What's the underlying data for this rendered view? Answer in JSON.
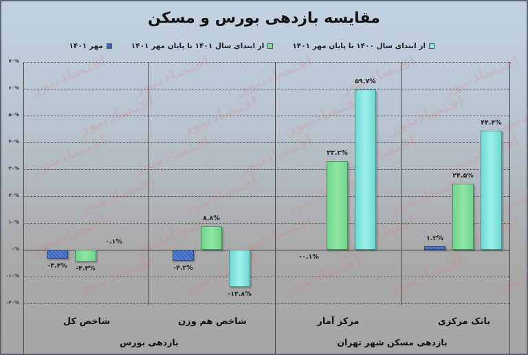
{
  "chart_data": {
    "type": "bar",
    "title": "مقایسه بازدهی بورس و مسکن",
    "legend_position": "top",
    "grid": true,
    "ylim": [
      -20,
      70
    ],
    "yticks": [
      "-۲۰%",
      "-۱۰%",
      "۰%",
      "۱۰%",
      "۲۰%",
      "۳۰%",
      "۴۰%",
      "۵۰%",
      "۶۰%",
      "۷۰%"
    ],
    "ytick_values": [
      -20,
      -10,
      0,
      10,
      20,
      30,
      40,
      50,
      60,
      70
    ],
    "categories": [
      "شاخص کل",
      "شاخص هم وزن",
      "مرکز آمار",
      "بانک مرکزی"
    ],
    "category_groups": [
      {
        "label": "بازدهی بورس",
        "categories": [
          "شاخص کل",
          "شاخص هم وزن"
        ]
      },
      {
        "label": "بازدهی مسکن شهر تهران",
        "categories": [
          "مرکز آمار",
          "بانک مرکزی"
        ]
      }
    ],
    "series": [
      {
        "name": "مهر ۱۴۰۱",
        "color": "#3a62b8",
        "values": [
          -3.4,
          -4.2,
          -0.1,
          1.2
        ],
        "labels": [
          "-۳.۴%",
          "-۴.۲%",
          "-۰.۱%",
          "۱.۲%"
        ]
      },
      {
        "name": "از ابتدای سال ۱۴۰۱ تا پایان مهر ۱۴۰۱",
        "color": "#7fdd98",
        "values": [
          -4.3,
          8.8,
          33.2,
          24.5
        ],
        "labels": [
          "-۴.۳%",
          "۸.۸%",
          "۳۳.۲%",
          "۲۴.۵%"
        ]
      },
      {
        "name": "از ابتدای سال ۱۴۰۰ تا پایان مهر ۱۴۰۱",
        "color": "#86e6e0",
        "values": [
          0.1,
          -13.8,
          59.7,
          44.4
        ],
        "labels": [
          "۰.۱%",
          "-۱۳.۸%",
          "۵۹.۷%",
          "۴۴.۴%"
        ]
      }
    ]
  },
  "title": "مقایسه بازدهی بورس و مسکن",
  "legend": [
    {
      "label": "از ابتدای سال ۱۴۰۰ تا پایان مهر ۱۴۰۱",
      "color": "#86e6e0"
    },
    {
      "label": "از ابتدای سال ۱۴۰۱ تا پایان مهر ۱۴۰۱",
      "color": "#7fdd98"
    },
    {
      "label": "مهر ۱۴۰۱",
      "color": "#3a62b8"
    }
  ],
  "watermark": "اقتصادنیوز"
}
